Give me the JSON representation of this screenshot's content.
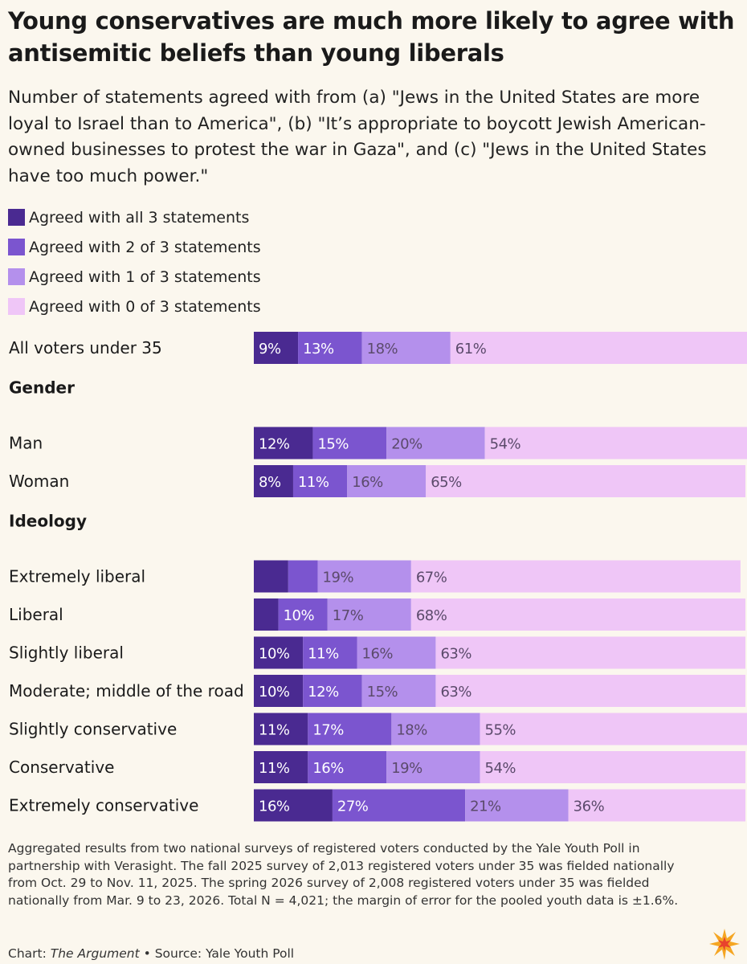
{
  "chart_data": {
    "type": "stacked-bar-horizontal",
    "title": "Young conservatives are much more likely to agree with antisemitic beliefs than young liberals",
    "subtitle": "Number of statements agreed with from (a) \"Jews in the United States are more loyal to Israel than to America\", (b) \"It’s appropriate to boycott Jewish American-owned businesses to protest the war in Gaza\", and (c) \"Jews in the United States have too much power.\"",
    "series": [
      {
        "name": "Agreed with all 3 statements",
        "color": "#4a2a91"
      },
      {
        "name": "Agreed with 2 of 3 statements",
        "color": "#7b55cf"
      },
      {
        "name": "Agreed with 1 of 3 statements",
        "color": "#b490ec"
      },
      {
        "name": "Agreed with 0 of 3 statements",
        "color": "#efc6f7"
      }
    ],
    "groups": [
      {
        "heading": "",
        "rows": [
          {
            "label": "All voters under 35",
            "values": [
              9,
              13,
              18,
              61
            ],
            "labels": [
              "9%",
              "13%",
              "18%",
              "61%"
            ]
          }
        ]
      },
      {
        "heading": "Gender",
        "rows": [
          {
            "label": "Man",
            "values": [
              12,
              15,
              20,
              54
            ],
            "labels": [
              "12%",
              "15%",
              "20%",
              "54%"
            ]
          },
          {
            "label": "Woman",
            "values": [
              8,
              11,
              16,
              65
            ],
            "labels": [
              "8%",
              "11%",
              "16%",
              "65%"
            ]
          }
        ]
      },
      {
        "heading": "Ideology",
        "rows": [
          {
            "label": "Extremely liberal",
            "values": [
              7,
              6,
              19,
              67
            ],
            "labels": [
              "",
              "",
              "19%",
              "67%"
            ]
          },
          {
            "label": "Liberal",
            "values": [
              5,
              10,
              17,
              68
            ],
            "labels": [
              "",
              "10%",
              "17%",
              "68%"
            ]
          },
          {
            "label": "Slightly liberal",
            "values": [
              10,
              11,
              16,
              63
            ],
            "labels": [
              "10%",
              "11%",
              "16%",
              "63%"
            ]
          },
          {
            "label": "Moderate; middle of the road",
            "values": [
              10,
              12,
              15,
              63
            ],
            "labels": [
              "10%",
              "12%",
              "15%",
              "63%"
            ]
          },
          {
            "label": "Slightly conservative",
            "values": [
              11,
              17,
              18,
              55
            ],
            "labels": [
              "11%",
              "17%",
              "18%",
              "55%"
            ]
          },
          {
            "label": "Conservative",
            "values": [
              11,
              16,
              19,
              54
            ],
            "labels": [
              "11%",
              "16%",
              "19%",
              "54%"
            ]
          },
          {
            "label": "Extremely conservative",
            "values": [
              16,
              27,
              21,
              36
            ],
            "labels": [
              "16%",
              "27%",
              "21%",
              "36%"
            ]
          }
        ]
      }
    ],
    "xlim": [
      0,
      100
    ],
    "label_colors": {
      "dark": "#ffffff",
      "light": "#5b4a6b"
    }
  },
  "footnote": "Aggregated results from two national surveys of registered voters conducted by the Yale Youth Poll in partnership with Verasight. The fall 2025 survey of 2,013 registered voters under 35 was fielded nationally from Oct. 29 to Nov. 11, 2025. The spring 2026 survey of 2,008 registered voters under 35 was fielded nationally from Mar. 9 to 23, 2026. Total N = 4,021; the margin of error for the pooled youth data is ±1.6%.",
  "credit": {
    "chart_prefix": "Chart: ",
    "publication": "The Argument",
    "separator": " • ",
    "source": "Source: Yale Youth Poll"
  },
  "logo": {
    "icon": "starburst-logo-icon",
    "colors": [
      "#f5a623",
      "#e8432d"
    ]
  }
}
